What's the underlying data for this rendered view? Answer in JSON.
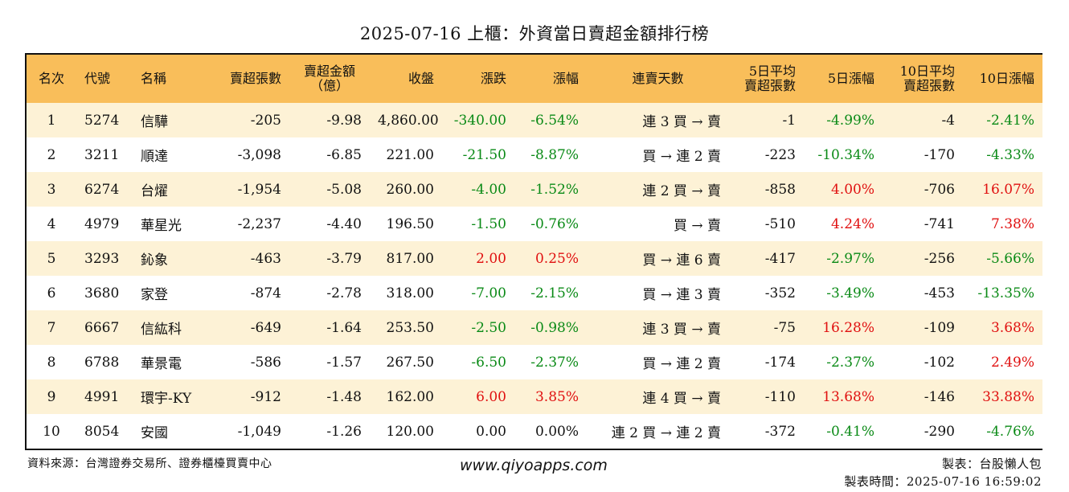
{
  "title": "2025-07-16 上櫃：外資當日賣超金額排行榜",
  "headers": {
    "rank": "名次",
    "code": "代號",
    "name": "名稱",
    "sell_shares": "賣超張數",
    "sell_amount_1": "賣超金額",
    "sell_amount_2": "（億）",
    "close": "收盤",
    "change": "漲跌",
    "change_pct": "漲幅",
    "streak": "連賣天數",
    "avg5_1": "5日平均",
    "avg5_2": "賣超張數",
    "pct5": "5日漲幅",
    "avg10_1": "10日平均",
    "avg10_2": "賣超張數",
    "pct10": "10日漲幅"
  },
  "rows": [
    {
      "rank": "1",
      "code": "5274",
      "name": "信驊",
      "sell_shares": "-205",
      "sell_amount": "-9.98",
      "close": "4,860.00",
      "change": "-340.00",
      "change_pct": "-6.54%",
      "streak": "連 3 買 → 賣",
      "avg5": "-1",
      "pct5": "-4.99%",
      "avg10": "-4",
      "pct10": "-2.41%"
    },
    {
      "rank": "2",
      "code": "3211",
      "name": "順達",
      "sell_shares": "-3,098",
      "sell_amount": "-6.85",
      "close": "221.00",
      "change": "-21.50",
      "change_pct": "-8.87%",
      "streak": "買 → 連 2 賣",
      "avg5": "-223",
      "pct5": "-10.34%",
      "avg10": "-170",
      "pct10": "-4.33%"
    },
    {
      "rank": "3",
      "code": "6274",
      "name": "台燿",
      "sell_shares": "-1,954",
      "sell_amount": "-5.08",
      "close": "260.00",
      "change": "-4.00",
      "change_pct": "-1.52%",
      "streak": "連 2 買 → 賣",
      "avg5": "-858",
      "pct5": "4.00%",
      "avg10": "-706",
      "pct10": "16.07%"
    },
    {
      "rank": "4",
      "code": "4979",
      "name": "華星光",
      "sell_shares": "-2,237",
      "sell_amount": "-4.40",
      "close": "196.50",
      "change": "-1.50",
      "change_pct": "-0.76%",
      "streak": "買 → 賣",
      "avg5": "-510",
      "pct5": "4.24%",
      "avg10": "-741",
      "pct10": "7.38%"
    },
    {
      "rank": "5",
      "code": "3293",
      "name": "鈊象",
      "sell_shares": "-463",
      "sell_amount": "-3.79",
      "close": "817.00",
      "change": "2.00",
      "change_pct": "0.25%",
      "streak": "買 → 連 6 賣",
      "avg5": "-417",
      "pct5": "-2.97%",
      "avg10": "-256",
      "pct10": "-5.66%"
    },
    {
      "rank": "6",
      "code": "3680",
      "name": "家登",
      "sell_shares": "-874",
      "sell_amount": "-2.78",
      "close": "318.00",
      "change": "-7.00",
      "change_pct": "-2.15%",
      "streak": "買 → 連 3 賣",
      "avg5": "-352",
      "pct5": "-3.49%",
      "avg10": "-453",
      "pct10": "-13.35%"
    },
    {
      "rank": "7",
      "code": "6667",
      "name": "信紘科",
      "sell_shares": "-649",
      "sell_amount": "-1.64",
      "close": "253.50",
      "change": "-2.50",
      "change_pct": "-0.98%",
      "streak": "連 3 買 → 賣",
      "avg5": "-75",
      "pct5": "16.28%",
      "avg10": "-109",
      "pct10": "3.68%"
    },
    {
      "rank": "8",
      "code": "6788",
      "name": "華景電",
      "sell_shares": "-586",
      "sell_amount": "-1.57",
      "close": "267.50",
      "change": "-6.50",
      "change_pct": "-2.37%",
      "streak": "買 → 連 2 賣",
      "avg5": "-174",
      "pct5": "-2.37%",
      "avg10": "-102",
      "pct10": "2.49%"
    },
    {
      "rank": "9",
      "code": "4991",
      "name": "環宇-KY",
      "sell_shares": "-912",
      "sell_amount": "-1.48",
      "close": "162.00",
      "change": "6.00",
      "change_pct": "3.85%",
      "streak": "連 4 買 → 賣",
      "avg5": "-110",
      "pct5": "13.68%",
      "avg10": "-146",
      "pct10": "33.88%"
    },
    {
      "rank": "10",
      "code": "8054",
      "name": "安國",
      "sell_shares": "-1,049",
      "sell_amount": "-1.26",
      "close": "120.00",
      "change": "0.00",
      "change_pct": "0.00%",
      "streak": "連 2 買 → 連 2 賣",
      "avg5": "-372",
      "pct5": "-0.41%",
      "avg10": "-290",
      "pct10": "-4.76%"
    }
  ],
  "footer": {
    "source": "資料來源：台灣證券交易所、證券櫃檯買賣中心",
    "website": "www.qiyoapps.com",
    "maker": "製表：台股懶人包",
    "time": "製表時間：2025-07-16 16:59:02"
  },
  "colors": {
    "header_bg": "#f9be5a",
    "row_alt_bg": "#fdf2d6",
    "up": "#e01010",
    "down": "#0a8a16"
  }
}
